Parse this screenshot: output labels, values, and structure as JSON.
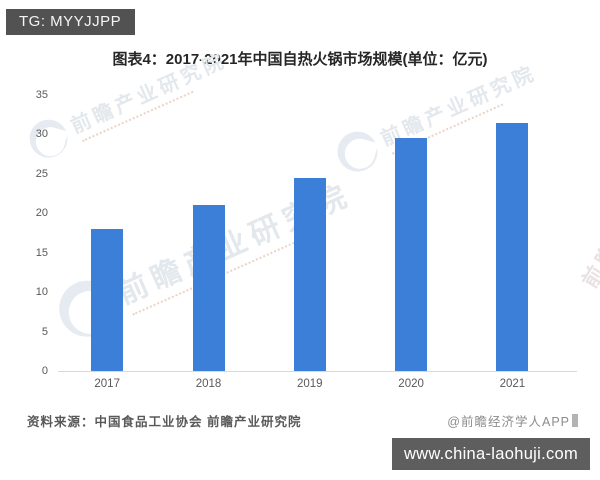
{
  "header": {
    "tag_label": "TG: MYYJJPP"
  },
  "chart_data": {
    "type": "bar",
    "title": "图表4：2017-2021年中国自热火锅市场规模(单位：亿元)",
    "unit": "亿元",
    "categories": [
      "2017",
      "2018",
      "2019",
      "2020",
      "2021"
    ],
    "values": [
      18,
      21,
      24.5,
      29.5,
      31.5
    ],
    "xlabel": "",
    "ylabel": "",
    "ylim": [
      0,
      35
    ],
    "ytick_step": 5,
    "yticks": [
      0,
      5,
      10,
      15,
      20,
      25,
      30,
      35
    ],
    "grid": false,
    "legend": false,
    "bar_color": "#3b7fd9"
  },
  "watermark": {
    "text": "前瞻产业研究院"
  },
  "footer": {
    "source_label": "资料来源：中国食品工业协会 前瞻产业研究院",
    "credit_label": "@前瞻经济学人APP"
  },
  "site_bar": {
    "url": "www.china-laohuji.com"
  },
  "colors": {
    "bar": "#3b7fd9",
    "axis_line": "#d9d9d9",
    "tick_text": "#595959",
    "title_text": "#262626",
    "source_text": "#595959",
    "credit_text": "#8c8c8c",
    "tag_bg": "#525252",
    "site_bar_bg": "#5e5e5e",
    "watermark": "#e3e8ed"
  }
}
